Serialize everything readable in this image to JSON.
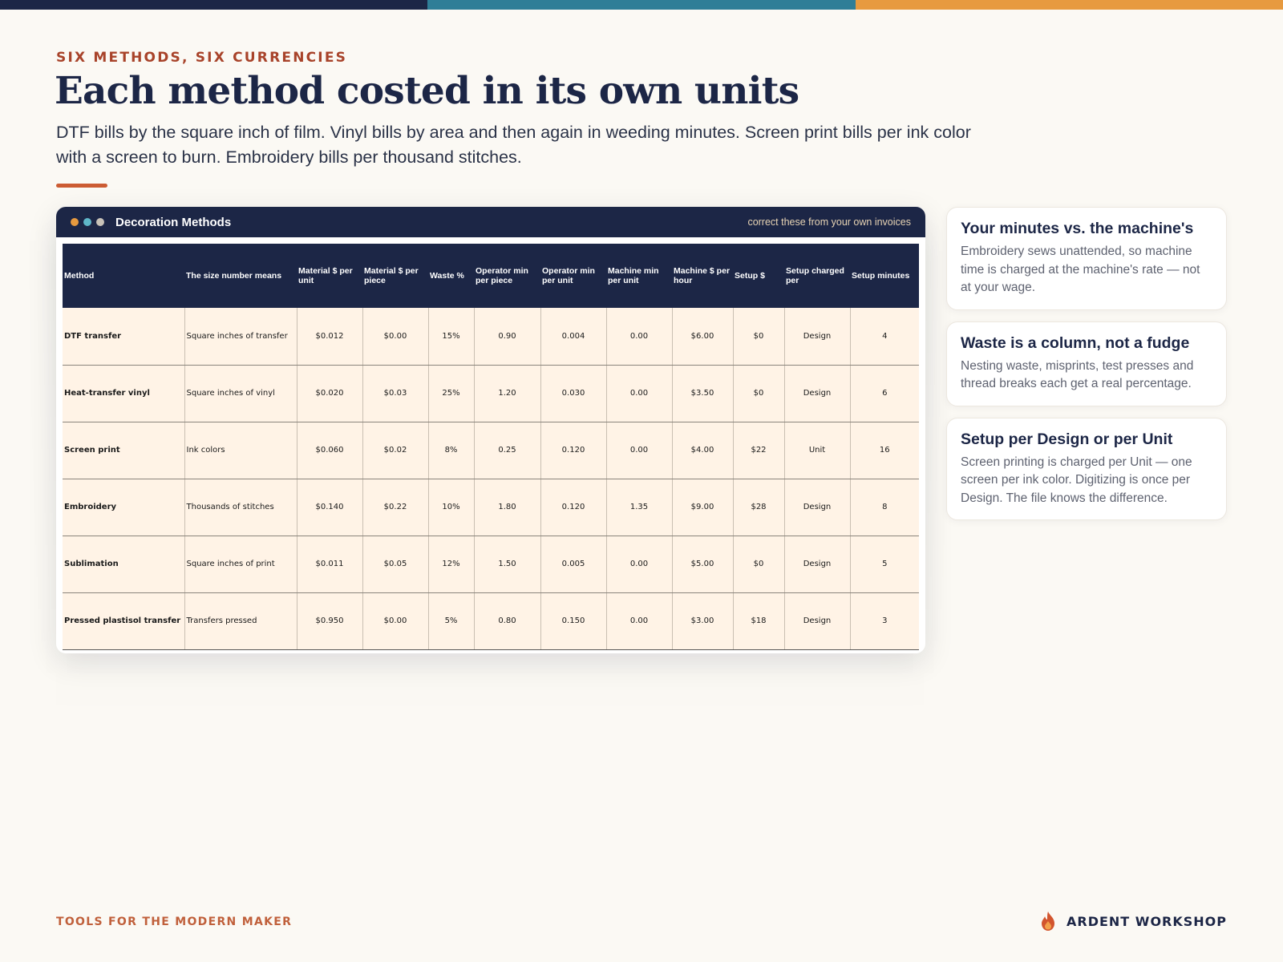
{
  "accent_colors": {
    "navy": "#1c2646",
    "teal": "#2f7e97",
    "orange": "#e79a3f",
    "rust": "#a8432a"
  },
  "kicker": "SIX METHODS, SIX CURRENCIES",
  "title": "Each method costed in its own units",
  "subtitle": "DTF bills by the square inch of film. Vinyl bills by area and then again in weeding minutes. Screen print bills per ink color with a screen to burn. Embroidery bills per thousand stitches.",
  "sheet": {
    "title": "Decoration Methods",
    "note": "correct these from your own invoices",
    "window_dots": [
      "#e79a3f",
      "#5fb7c9",
      "#c8c2b8"
    ],
    "columns": [
      "Method",
      "The size number means",
      "Material $ per unit",
      "Material $ per piece",
      "Waste %",
      "Operator min per piece",
      "Operator min per unit",
      "Machine min per unit",
      "Machine $ per hour",
      "Setup $",
      "Setup charged per",
      "Setup minutes"
    ],
    "rows": [
      [
        "DTF transfer",
        "Square inches of transfer",
        "$0.012",
        "$0.00",
        "15%",
        "0.90",
        "0.004",
        "0.00",
        "$6.00",
        "$0",
        "Design",
        "4"
      ],
      [
        "Heat-transfer vinyl",
        "Square inches of vinyl",
        "$0.020",
        "$0.03",
        "25%",
        "1.20",
        "0.030",
        "0.00",
        "$3.50",
        "$0",
        "Design",
        "6"
      ],
      [
        "Screen print",
        "Ink colors",
        "$0.060",
        "$0.02",
        "8%",
        "0.25",
        "0.120",
        "0.00",
        "$4.00",
        "$22",
        "Unit",
        "16"
      ],
      [
        "Embroidery",
        "Thousands of stitches",
        "$0.140",
        "$0.22",
        "10%",
        "1.80",
        "0.120",
        "1.35",
        "$9.00",
        "$28",
        "Design",
        "8"
      ],
      [
        "Sublimation",
        "Square inches of print",
        "$0.011",
        "$0.05",
        "12%",
        "1.50",
        "0.005",
        "0.00",
        "$5.00",
        "$0",
        "Design",
        "5"
      ],
      [
        "Pressed plastisol transfer",
        "Transfers pressed",
        "$0.950",
        "$0.00",
        "5%",
        "0.80",
        "0.150",
        "0.00",
        "$3.00",
        "$18",
        "Design",
        "3"
      ]
    ]
  },
  "cards": [
    {
      "title": "Your minutes vs. the machine's",
      "body": "Embroidery sews unattended, so machine time is charged at the machine's rate — not at your wage."
    },
    {
      "title": "Waste is a column, not a fudge",
      "body": "Nesting waste, misprints, test presses and thread breaks each get a real percentage."
    },
    {
      "title": "Setup per Design or per Unit",
      "body": "Screen printing is charged per Unit — one screen per ink color. Digitizing is once per Design. The file knows the difference."
    }
  ],
  "footer": {
    "tagline": "TOOLS FOR THE MODERN MAKER",
    "brand": "ARDENT WORKSHOP",
    "brand_icon": "flame-icon"
  }
}
